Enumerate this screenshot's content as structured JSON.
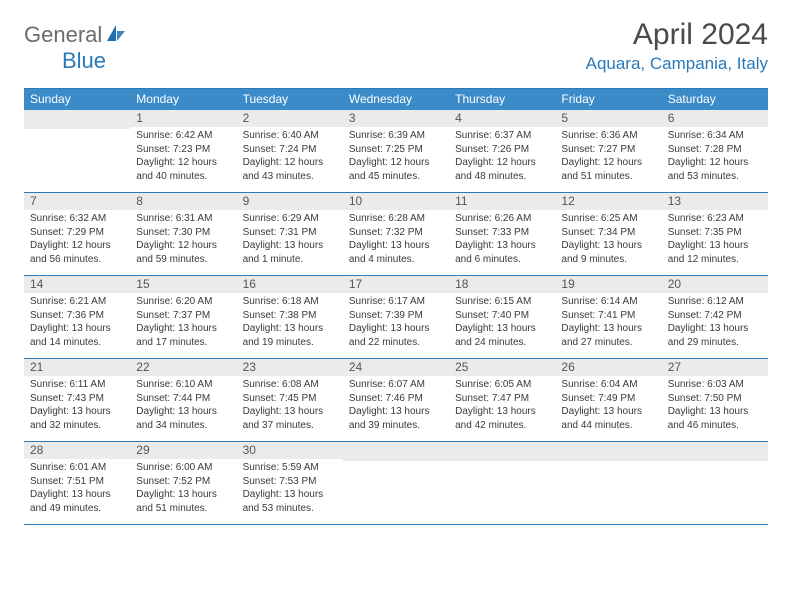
{
  "logo": {
    "general": "General",
    "blue": "Blue"
  },
  "title": "April 2024",
  "location": "Aquara, Campania, Italy",
  "colors": {
    "header_bg": "#3b8bc9",
    "border": "#2a7ab9",
    "daybar_bg": "#ebebeb",
    "text": "#3a3a3a",
    "logo_gray": "#6b6b6b",
    "logo_blue": "#2a7ab9"
  },
  "dayNames": [
    "Sunday",
    "Monday",
    "Tuesday",
    "Wednesday",
    "Thursday",
    "Friday",
    "Saturday"
  ],
  "weeks": [
    [
      {
        "n": "",
        "lines": []
      },
      {
        "n": "1",
        "lines": [
          "Sunrise: 6:42 AM",
          "Sunset: 7:23 PM",
          "Daylight: 12 hours",
          "and 40 minutes."
        ]
      },
      {
        "n": "2",
        "lines": [
          "Sunrise: 6:40 AM",
          "Sunset: 7:24 PM",
          "Daylight: 12 hours",
          "and 43 minutes."
        ]
      },
      {
        "n": "3",
        "lines": [
          "Sunrise: 6:39 AM",
          "Sunset: 7:25 PM",
          "Daylight: 12 hours",
          "and 45 minutes."
        ]
      },
      {
        "n": "4",
        "lines": [
          "Sunrise: 6:37 AM",
          "Sunset: 7:26 PM",
          "Daylight: 12 hours",
          "and 48 minutes."
        ]
      },
      {
        "n": "5",
        "lines": [
          "Sunrise: 6:36 AM",
          "Sunset: 7:27 PM",
          "Daylight: 12 hours",
          "and 51 minutes."
        ]
      },
      {
        "n": "6",
        "lines": [
          "Sunrise: 6:34 AM",
          "Sunset: 7:28 PM",
          "Daylight: 12 hours",
          "and 53 minutes."
        ]
      }
    ],
    [
      {
        "n": "7",
        "lines": [
          "Sunrise: 6:32 AM",
          "Sunset: 7:29 PM",
          "Daylight: 12 hours",
          "and 56 minutes."
        ]
      },
      {
        "n": "8",
        "lines": [
          "Sunrise: 6:31 AM",
          "Sunset: 7:30 PM",
          "Daylight: 12 hours",
          "and 59 minutes."
        ]
      },
      {
        "n": "9",
        "lines": [
          "Sunrise: 6:29 AM",
          "Sunset: 7:31 PM",
          "Daylight: 13 hours",
          "and 1 minute."
        ]
      },
      {
        "n": "10",
        "lines": [
          "Sunrise: 6:28 AM",
          "Sunset: 7:32 PM",
          "Daylight: 13 hours",
          "and 4 minutes."
        ]
      },
      {
        "n": "11",
        "lines": [
          "Sunrise: 6:26 AM",
          "Sunset: 7:33 PM",
          "Daylight: 13 hours",
          "and 6 minutes."
        ]
      },
      {
        "n": "12",
        "lines": [
          "Sunrise: 6:25 AM",
          "Sunset: 7:34 PM",
          "Daylight: 13 hours",
          "and 9 minutes."
        ]
      },
      {
        "n": "13",
        "lines": [
          "Sunrise: 6:23 AM",
          "Sunset: 7:35 PM",
          "Daylight: 13 hours",
          "and 12 minutes."
        ]
      }
    ],
    [
      {
        "n": "14",
        "lines": [
          "Sunrise: 6:21 AM",
          "Sunset: 7:36 PM",
          "Daylight: 13 hours",
          "and 14 minutes."
        ]
      },
      {
        "n": "15",
        "lines": [
          "Sunrise: 6:20 AM",
          "Sunset: 7:37 PM",
          "Daylight: 13 hours",
          "and 17 minutes."
        ]
      },
      {
        "n": "16",
        "lines": [
          "Sunrise: 6:18 AM",
          "Sunset: 7:38 PM",
          "Daylight: 13 hours",
          "and 19 minutes."
        ]
      },
      {
        "n": "17",
        "lines": [
          "Sunrise: 6:17 AM",
          "Sunset: 7:39 PM",
          "Daylight: 13 hours",
          "and 22 minutes."
        ]
      },
      {
        "n": "18",
        "lines": [
          "Sunrise: 6:15 AM",
          "Sunset: 7:40 PM",
          "Daylight: 13 hours",
          "and 24 minutes."
        ]
      },
      {
        "n": "19",
        "lines": [
          "Sunrise: 6:14 AM",
          "Sunset: 7:41 PM",
          "Daylight: 13 hours",
          "and 27 minutes."
        ]
      },
      {
        "n": "20",
        "lines": [
          "Sunrise: 6:12 AM",
          "Sunset: 7:42 PM",
          "Daylight: 13 hours",
          "and 29 minutes."
        ]
      }
    ],
    [
      {
        "n": "21",
        "lines": [
          "Sunrise: 6:11 AM",
          "Sunset: 7:43 PM",
          "Daylight: 13 hours",
          "and 32 minutes."
        ]
      },
      {
        "n": "22",
        "lines": [
          "Sunrise: 6:10 AM",
          "Sunset: 7:44 PM",
          "Daylight: 13 hours",
          "and 34 minutes."
        ]
      },
      {
        "n": "23",
        "lines": [
          "Sunrise: 6:08 AM",
          "Sunset: 7:45 PM",
          "Daylight: 13 hours",
          "and 37 minutes."
        ]
      },
      {
        "n": "24",
        "lines": [
          "Sunrise: 6:07 AM",
          "Sunset: 7:46 PM",
          "Daylight: 13 hours",
          "and 39 minutes."
        ]
      },
      {
        "n": "25",
        "lines": [
          "Sunrise: 6:05 AM",
          "Sunset: 7:47 PM",
          "Daylight: 13 hours",
          "and 42 minutes."
        ]
      },
      {
        "n": "26",
        "lines": [
          "Sunrise: 6:04 AM",
          "Sunset: 7:49 PM",
          "Daylight: 13 hours",
          "and 44 minutes."
        ]
      },
      {
        "n": "27",
        "lines": [
          "Sunrise: 6:03 AM",
          "Sunset: 7:50 PM",
          "Daylight: 13 hours",
          "and 46 minutes."
        ]
      }
    ],
    [
      {
        "n": "28",
        "lines": [
          "Sunrise: 6:01 AM",
          "Sunset: 7:51 PM",
          "Daylight: 13 hours",
          "and 49 minutes."
        ]
      },
      {
        "n": "29",
        "lines": [
          "Sunrise: 6:00 AM",
          "Sunset: 7:52 PM",
          "Daylight: 13 hours",
          "and 51 minutes."
        ]
      },
      {
        "n": "30",
        "lines": [
          "Sunrise: 5:59 AM",
          "Sunset: 7:53 PM",
          "Daylight: 13 hours",
          "and 53 minutes."
        ]
      },
      {
        "n": "",
        "lines": []
      },
      {
        "n": "",
        "lines": []
      },
      {
        "n": "",
        "lines": []
      },
      {
        "n": "",
        "lines": []
      }
    ]
  ]
}
